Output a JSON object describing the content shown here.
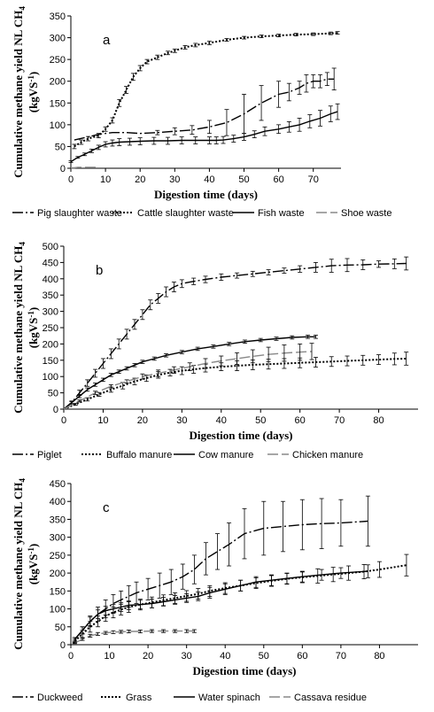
{
  "chart_data": [
    {
      "type": "line",
      "panel_label": "a",
      "ylabel": "Cumulative methane yield NL CH4 (kgVS-1)",
      "ylabel_line1": "Cumulative methane yield NL CH",
      "ylabel_sub": "4",
      "ylabel_line2": "(kgVS",
      "ylabel_sup": "-1",
      "ylabel_close": ")",
      "xlabel": "Digestion time (days)",
      "xlim": [
        0,
        78
      ],
      "ylim": [
        0,
        350
      ],
      "xticks": [
        0,
        10,
        20,
        30,
        40,
        50,
        60,
        70
      ],
      "yticks": [
        0,
        50,
        100,
        150,
        200,
        250,
        300,
        350
      ],
      "grid": false,
      "legend_position": "bottom",
      "series": [
        {
          "name": "Pig slaughter waste",
          "dash": "12,3,2,3",
          "color": "#000000",
          "x": [
            1,
            5,
            8,
            10,
            12,
            14,
            16,
            20,
            25,
            30,
            35,
            40,
            45,
            50,
            55,
            60,
            63,
            66,
            68,
            70,
            72,
            74,
            76
          ],
          "y": [
            65,
            72,
            78,
            80,
            82,
            82,
            82,
            80,
            82,
            85,
            88,
            95,
            105,
            125,
            150,
            170,
            175,
            185,
            195,
            200,
            200,
            205,
            205
          ],
          "err": [
            0,
            0,
            0,
            0,
            0,
            0,
            0,
            0,
            5,
            8,
            10,
            15,
            30,
            45,
            40,
            30,
            20,
            15,
            20,
            15,
            15,
            15,
            25
          ]
        },
        {
          "name": "Cattle slaughter waste",
          "dash": "2,2",
          "color": "#000000",
          "x": [
            1,
            3,
            5,
            8,
            10,
            12,
            14,
            16,
            18,
            20,
            22,
            25,
            28,
            30,
            33,
            36,
            40,
            45,
            50,
            55,
            60,
            65,
            70,
            75,
            77
          ],
          "y": [
            50,
            60,
            68,
            75,
            90,
            110,
            150,
            180,
            210,
            230,
            245,
            255,
            265,
            270,
            278,
            283,
            288,
            295,
            300,
            303,
            305,
            307,
            308,
            310,
            311
          ],
          "err": [
            5,
            5,
            5,
            5,
            5,
            6,
            8,
            8,
            8,
            6,
            5,
            5,
            4,
            4,
            4,
            4,
            4,
            3,
            3,
            3,
            3,
            3,
            3,
            3,
            3
          ]
        },
        {
          "name": "Fish waste",
          "dash": "",
          "color": "#000000",
          "x": [
            0,
            2,
            4,
            6,
            8,
            10,
            12,
            14,
            17,
            20,
            24,
            28,
            32,
            36,
            40,
            42,
            44,
            47,
            50,
            53,
            56,
            60,
            63,
            66,
            69,
            72,
            75,
            77
          ],
          "y": [
            15,
            25,
            32,
            40,
            48,
            55,
            58,
            60,
            61,
            62,
            63,
            63,
            64,
            64,
            64,
            64,
            65,
            68,
            72,
            78,
            85,
            90,
            95,
            100,
            108,
            115,
            125,
            130
          ],
          "err": [
            2,
            2,
            3,
            4,
            5,
            6,
            7,
            8,
            8,
            8,
            8,
            8,
            8,
            8,
            8,
            8,
            8,
            8,
            8,
            8,
            10,
            10,
            12,
            15,
            15,
            18,
            18,
            18
          ]
        },
        {
          "name": "Shoe waste",
          "dash": "12,4",
          "color": "#888888",
          "x": [
            0,
            1,
            2,
            3,
            4,
            5,
            6,
            7,
            8
          ],
          "y": [
            1,
            1,
            2,
            2,
            2,
            2,
            2,
            2,
            2
          ],
          "err": [
            0,
            0,
            0,
            0,
            0,
            0,
            0,
            0,
            0
          ]
        }
      ]
    },
    {
      "type": "line",
      "panel_label": "b",
      "ylabel": "Cumulative methane yield NL CH4 (kgVS-1)",
      "ylabel_line1": "Cumulative methane yield NL CH",
      "ylabel_sub": "4",
      "ylabel_line2": "(kgVS",
      "ylabel_sup": "-1",
      "ylabel_close": ")",
      "xlabel": "Digestion time (days)",
      "xlim": [
        0,
        90
      ],
      "ylim": [
        0,
        500
      ],
      "xticks": [
        0,
        10,
        20,
        30,
        40,
        50,
        60,
        70,
        80
      ],
      "yticks": [
        0,
        50,
        100,
        150,
        200,
        250,
        300,
        350,
        400,
        450,
        500
      ],
      "grid": false,
      "legend_position": "bottom",
      "series": [
        {
          "name": "Piglet",
          "dash": "12,3,2,3",
          "color": "#000000",
          "x": [
            0,
            2,
            4,
            6,
            8,
            10,
            12,
            14,
            16,
            18,
            20,
            22,
            24,
            26,
            28,
            30,
            33,
            36,
            40,
            44,
            48,
            52,
            56,
            60,
            64,
            68,
            72,
            76,
            80,
            84,
            87
          ],
          "y": [
            0,
            20,
            50,
            80,
            110,
            140,
            170,
            200,
            230,
            260,
            290,
            320,
            340,
            360,
            375,
            385,
            392,
            398,
            405,
            410,
            415,
            420,
            425,
            430,
            435,
            440,
            442,
            443,
            445,
            446,
            447
          ],
          "err": [
            0,
            5,
            8,
            10,
            12,
            15,
            15,
            15,
            15,
            15,
            15,
            15,
            15,
            15,
            15,
            12,
            10,
            10,
            10,
            8,
            8,
            8,
            8,
            10,
            15,
            20,
            20,
            15,
            10,
            15,
            20
          ]
        },
        {
          "name": "Buffalo manure",
          "dash": "2,2",
          "color": "#000000",
          "x": [
            0,
            3,
            6,
            9,
            12,
            15,
            18,
            21,
            24,
            27,
            30,
            33,
            36,
            40,
            44,
            48,
            52,
            56,
            60,
            64,
            68,
            72,
            76,
            80,
            84,
            87
          ],
          "y": [
            0,
            15,
            30,
            45,
            60,
            72,
            85,
            95,
            105,
            112,
            118,
            122,
            126,
            130,
            133,
            136,
            138,
            140,
            142,
            144,
            146,
            148,
            150,
            152,
            154,
            155
          ],
          "err": [
            0,
            3,
            5,
            6,
            8,
            10,
            10,
            10,
            10,
            10,
            12,
            12,
            12,
            12,
            15,
            15,
            15,
            15,
            15,
            15,
            15,
            15,
            15,
            15,
            18,
            20
          ]
        },
        {
          "name": "Cow manure",
          "dash": "",
          "color": "#000000",
          "x": [
            0,
            2,
            4,
            6,
            8,
            10,
            12,
            14,
            16,
            18,
            20,
            23,
            26,
            30,
            34,
            38,
            42,
            46,
            50,
            54,
            58,
            62,
            64
          ],
          "y": [
            0,
            20,
            40,
            60,
            75,
            90,
            105,
            115,
            125,
            135,
            145,
            155,
            165,
            175,
            185,
            192,
            200,
            207,
            212,
            216,
            220,
            222,
            222
          ],
          "err": [
            0,
            3,
            5,
            5,
            5,
            5,
            5,
            5,
            5,
            5,
            5,
            5,
            5,
            5,
            5,
            5,
            5,
            5,
            5,
            5,
            5,
            5,
            5
          ]
        },
        {
          "name": "Chicken manure",
          "dash": "12,4",
          "color": "#888888",
          "x": [
            0,
            4,
            8,
            12,
            16,
            20,
            24,
            28,
            32,
            36,
            40,
            44,
            48,
            52,
            56,
            60,
            63
          ],
          "y": [
            0,
            25,
            50,
            70,
            85,
            100,
            110,
            120,
            130,
            140,
            148,
            155,
            162,
            168,
            172,
            175,
            177
          ],
          "err": [
            0,
            3,
            5,
            5,
            5,
            8,
            10,
            10,
            12,
            15,
            15,
            18,
            20,
            22,
            25,
            25,
            25
          ]
        }
      ]
    },
    {
      "type": "line",
      "panel_label": "c",
      "ylabel": "Cumulative methane yield NL CH4 (kgVS-1)",
      "ylabel_line1": "Cumulative methane yield NL CH",
      "ylabel_sub": "4",
      "ylabel_line2": "(kgVS",
      "ylabel_sup": "-1",
      "ylabel_close": ")",
      "xlabel": "Digestion time (days)",
      "xlim": [
        0,
        90
      ],
      "ylim": [
        0,
        450
      ],
      "xticks": [
        0,
        10,
        20,
        30,
        40,
        50,
        60,
        70,
        80
      ],
      "yticks": [
        0,
        50,
        100,
        150,
        200,
        250,
        300,
        350,
        400,
        450
      ],
      "grid": false,
      "legend_position": "bottom",
      "series": [
        {
          "name": "Duckweed",
          "dash": "12,3,2,3",
          "color": "#000000",
          "x": [
            1,
            3,
            5,
            7,
            9,
            11,
            13,
            15,
            17,
            20,
            23,
            26,
            29,
            32,
            35,
            38,
            41,
            45,
            50,
            55,
            60,
            65,
            70,
            77
          ],
          "y": [
            15,
            40,
            65,
            85,
            100,
            115,
            125,
            135,
            145,
            155,
            165,
            175,
            190,
            210,
            240,
            260,
            280,
            310,
            325,
            330,
            335,
            338,
            340,
            345
          ],
          "err": [
            5,
            10,
            15,
            20,
            25,
            25,
            25,
            30,
            30,
            30,
            35,
            35,
            35,
            40,
            45,
            50,
            60,
            70,
            75,
            70,
            70,
            70,
            65,
            70
          ]
        },
        {
          "name": "Grass",
          "dash": "2,2",
          "color": "#000000",
          "x": [
            1,
            3,
            5,
            7,
            9,
            11,
            13,
            15,
            18,
            21,
            24,
            27,
            30,
            33,
            36,
            40,
            44,
            48,
            52,
            56,
            60,
            64,
            68,
            72,
            76,
            80,
            87
          ],
          "y": [
            10,
            30,
            50,
            65,
            80,
            90,
            98,
            105,
            112,
            118,
            124,
            130,
            136,
            142,
            150,
            158,
            165,
            172,
            178,
            184,
            188,
            192,
            196,
            200,
            204,
            210,
            222
          ],
          "err": [
            5,
            10,
            15,
            15,
            15,
            15,
            15,
            15,
            15,
            15,
            15,
            15,
            15,
            15,
            15,
            15,
            15,
            15,
            15,
            15,
            15,
            20,
            20,
            20,
            20,
            22,
            30
          ]
        },
        {
          "name": "Water spinach",
          "dash": "",
          "color": "#000000",
          "x": [
            1,
            3,
            5,
            7,
            9,
            11,
            13,
            15,
            18,
            21,
            24,
            27,
            30,
            33,
            36,
            40,
            44,
            48,
            52,
            56,
            60,
            65,
            70,
            77
          ],
          "y": [
            15,
            40,
            65,
            85,
            95,
            100,
            105,
            110,
            112,
            115,
            120,
            125,
            130,
            135,
            145,
            155,
            165,
            175,
            180,
            185,
            190,
            195,
            200,
            205
          ],
          "err": [
            5,
            10,
            12,
            12,
            12,
            12,
            12,
            12,
            12,
            12,
            12,
            12,
            12,
            12,
            15,
            15,
            15,
            15,
            15,
            15,
            15,
            15,
            15,
            18
          ]
        },
        {
          "name": "Cassava residue",
          "dash": "12,4",
          "color": "#888888",
          "x": [
            1,
            3,
            5,
            7,
            9,
            11,
            13,
            15,
            18,
            21,
            24,
            27,
            30,
            32
          ],
          "y": [
            5,
            15,
            25,
            30,
            33,
            35,
            36,
            37,
            37,
            38,
            38,
            38,
            38,
            38
          ],
          "err": [
            2,
            3,
            4,
            4,
            4,
            4,
            4,
            4,
            4,
            4,
            4,
            4,
            4,
            4
          ]
        }
      ]
    }
  ]
}
